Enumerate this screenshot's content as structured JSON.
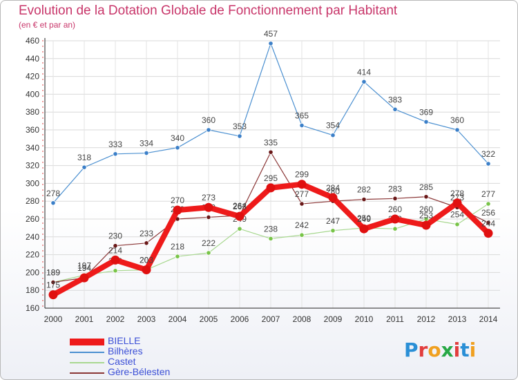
{
  "title": "Evolution de la Dotation Globale de Fonctionnement par Habitant",
  "subtitle": "(en € et par an)",
  "logo_text": "Proxiti",
  "logo_colors": [
    "#2a8fd6",
    "#e23d3d",
    "#f0a020",
    "#27a845",
    "#e23d3d",
    "#2a8fd6",
    "#f0a020"
  ],
  "chart_data": {
    "type": "line",
    "title": "Evolution de la Dotation Globale de Fonctionnement par Habitant",
    "subtitle": "(en € et par an)",
    "xlabel": "",
    "ylabel": "",
    "x": [
      "2000",
      "2001",
      "2002",
      "2003",
      "2004",
      "2005",
      "2006",
      "2007",
      "2008",
      "2009",
      "2010",
      "2011",
      "2012",
      "2013",
      "2014"
    ],
    "ylim": [
      160,
      460
    ],
    "yticks": [
      160,
      180,
      200,
      220,
      240,
      260,
      280,
      300,
      320,
      340,
      360,
      380,
      400,
      420,
      440,
      460
    ],
    "grid": true,
    "legend_position": "bottom-left",
    "series": [
      {
        "name": "Bilhères",
        "color": "#4a8fd0",
        "marker": "#3b7fc8",
        "width": 1.2,
        "radius": 3.2,
        "values": [
          278,
          318,
          333,
          334,
          340,
          360,
          353,
          457,
          365,
          354,
          414,
          383,
          369,
          360,
          322
        ]
      },
      {
        "name": "Castet",
        "color": "#a8d890",
        "marker": "#78c448",
        "width": 1.2,
        "radius": 3.2,
        "values": [
          189,
          197,
          202,
          203,
          218,
          222,
          249,
          238,
          242,
          247,
          250,
          249,
          260,
          254,
          277
        ]
      },
      {
        "name": "Gère-Bélesten",
        "color": "#8a3535",
        "marker": "#6a1818",
        "width": 1.2,
        "radius": 3.2,
        "values": [
          189,
          194,
          230,
          233,
          260,
          262,
          264,
          335,
          277,
          280,
          282,
          283,
          285,
          273,
          256
        ]
      },
      {
        "name": "BIELLE",
        "color": "#ee1a1a",
        "marker": "#e01010",
        "width": 8,
        "radius": 6.5,
        "values": [
          175,
          194,
          214,
          203,
          270,
          273,
          263,
          295,
          299,
          284,
          249,
          260,
          253,
          278,
          244
        ]
      }
    ],
    "legend_order": [
      "BIELLE",
      "Bilhères",
      "Castet",
      "Gère-Bélesten"
    ]
  }
}
